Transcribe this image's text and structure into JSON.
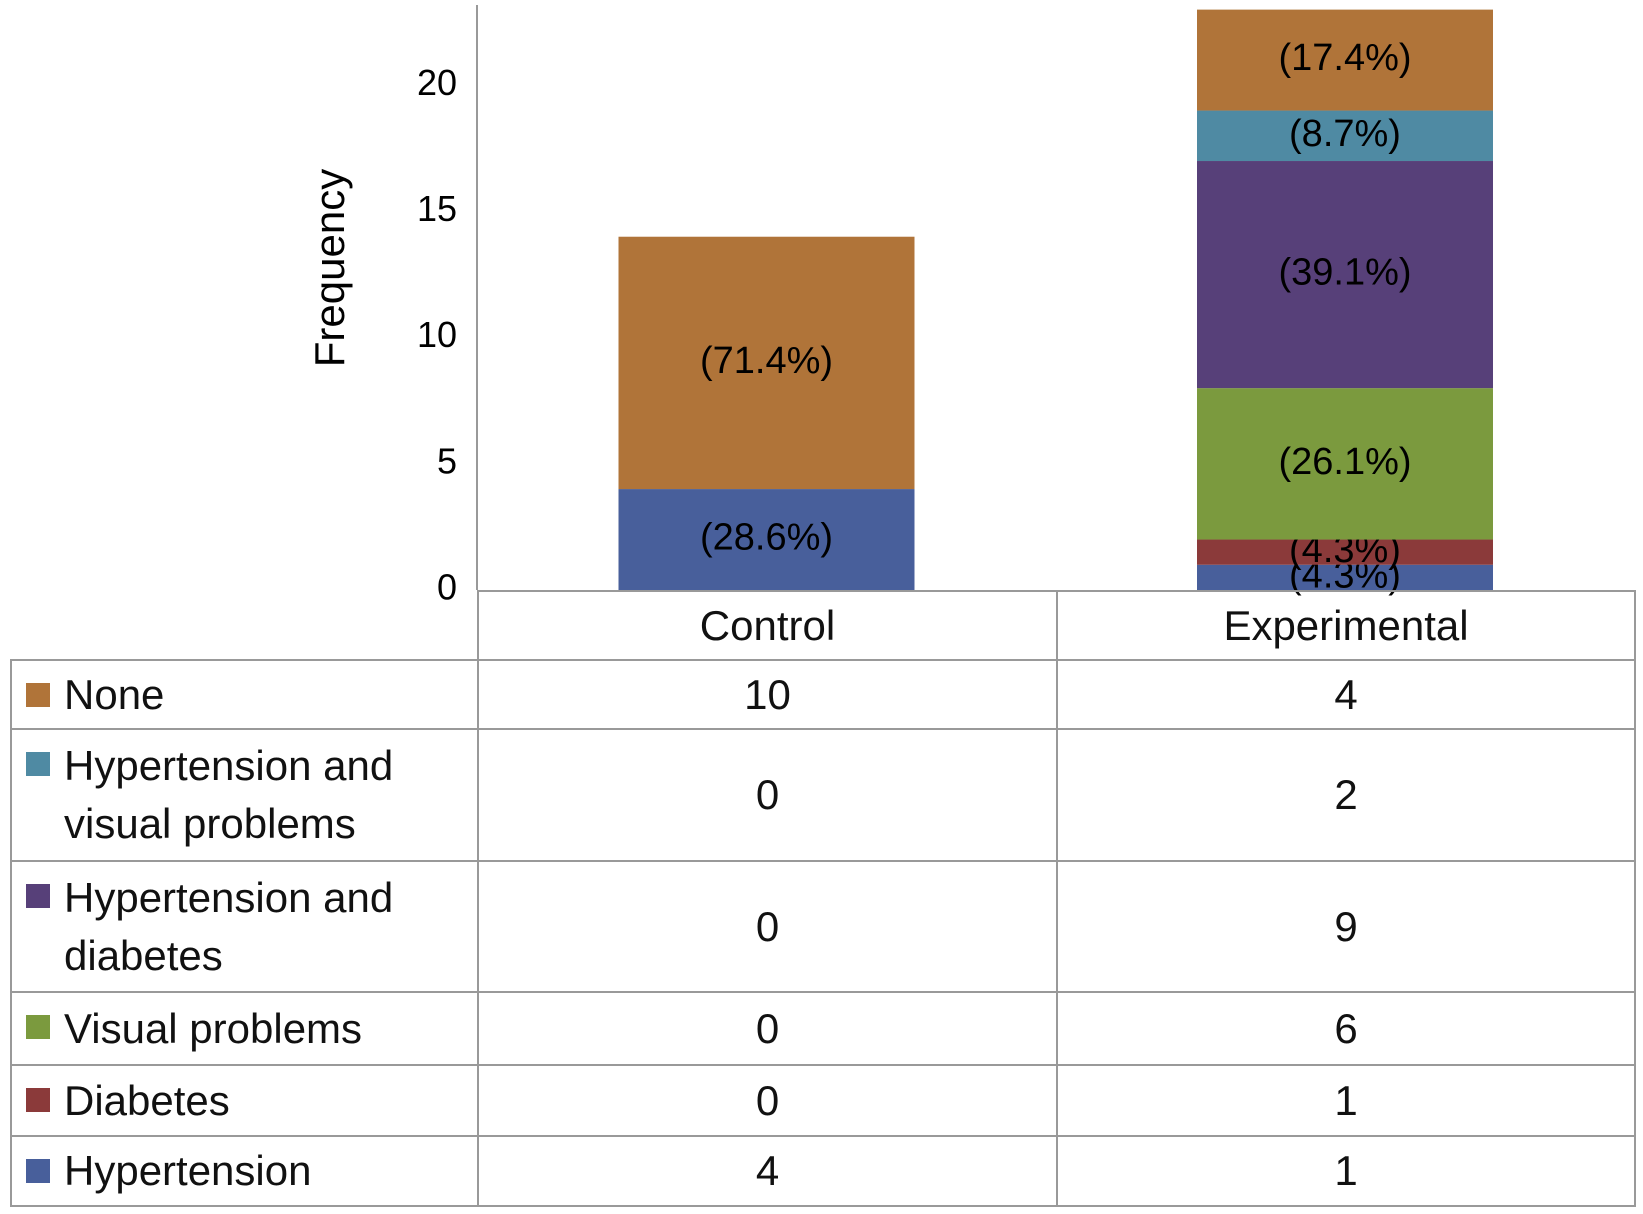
{
  "chart_data": {
    "type": "stacked-bar",
    "y_label": "Frequency",
    "categories": [
      "Control",
      "Experimental"
    ],
    "ylim": [
      0,
      23.5
    ],
    "yticks": [
      0,
      5,
      10,
      15,
      20
    ],
    "series": [
      {
        "name": "None",
        "color": "#b07439",
        "values": [
          10,
          4
        ],
        "percent_labels": [
          "(71.4%)",
          "(17.4%)"
        ]
      },
      {
        "name": "Hypertension and visual problems",
        "color": "#4f8aa3",
        "values": [
          0,
          2
        ],
        "percent_labels": [
          null,
          "(8.7%)"
        ]
      },
      {
        "name": "Hypertension and diabetes",
        "color": "#574079",
        "values": [
          0,
          9
        ],
        "percent_labels": [
          null,
          "(39.1%)"
        ]
      },
      {
        "name": "Visual problems",
        "color": "#7b9a3e",
        "values": [
          0,
          6
        ],
        "percent_labels": [
          null,
          "(26.1%)"
        ]
      },
      {
        "name": "Diabetes",
        "color": "#8b3a3a",
        "values": [
          0,
          1
        ],
        "percent_labels": [
          null,
          "(4.3%)"
        ]
      },
      {
        "name": "Hypertension",
        "color": "#485f9b",
        "values": [
          4,
          1
        ],
        "percent_labels": [
          "(28.6%)",
          "(4.3%)"
        ]
      }
    ]
  }
}
